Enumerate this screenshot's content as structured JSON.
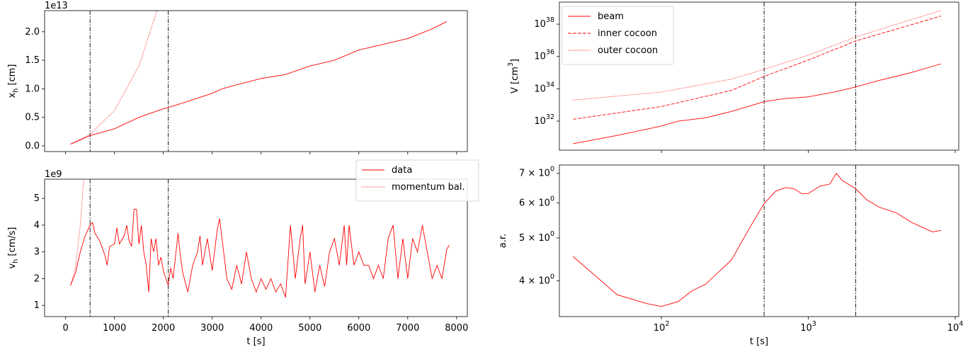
{
  "chart_data": [
    {
      "type": "line",
      "xscale": "linear",
      "yscale": "linear",
      "ylabel": "x_h [cm]",
      "offset_text": "1e13",
      "xlim": [
        -430,
        8220
      ],
      "ylim": [
        -0.1,
        2.37
      ],
      "xticks": [
        0,
        1000,
        2000,
        3000,
        4000,
        5000,
        6000,
        7000,
        8000
      ],
      "xtick_labels": false,
      "yticks": [
        {
          "value": 0,
          "label": "0.0"
        },
        {
          "value": 0.5,
          "label": "0.5"
        },
        {
          "value": 1,
          "label": "1.0"
        },
        {
          "value": 1.5,
          "label": "1.5"
        },
        {
          "value": 2,
          "label": "2.0"
        }
      ],
      "vlines": [
        500,
        2100
      ],
      "series": [
        {
          "name": "data",
          "color": "#ff0000",
          "style": "solid",
          "x": [
            100,
            500,
            1000,
            1500,
            2000,
            2100,
            2500,
            3000,
            3200,
            3500,
            4000,
            4500,
            5000,
            5500,
            6000,
            6500,
            7000,
            7500,
            7800
          ],
          "values": [
            0.03,
            0.18,
            0.3,
            0.5,
            0.65,
            0.67,
            0.78,
            0.92,
            1.0,
            1.07,
            1.18,
            1.25,
            1.4,
            1.5,
            1.68,
            1.78,
            1.88,
            2.05,
            2.18
          ]
        },
        {
          "name": "momentum bal.",
          "color": "#ff0000",
          "style": "dotted",
          "x": [
            100,
            500,
            1000,
            1500,
            1870
          ],
          "values": [
            0.03,
            0.2,
            0.62,
            1.4,
            2.37
          ]
        }
      ]
    },
    {
      "type": "line",
      "xscale": "linear",
      "yscale": "linear",
      "ylabel": "v_h [cm/s]",
      "xlabel": "t [s]",
      "offset_text": "1e9",
      "legend": "upper right",
      "xlim": [
        -430,
        8220
      ],
      "ylim": [
        0.58,
        5.72
      ],
      "xticks": [
        0,
        1000,
        2000,
        3000,
        4000,
        5000,
        6000,
        7000,
        8000
      ],
      "yticks": [
        1,
        2,
        3,
        4,
        5
      ],
      "vlines": [
        500,
        2100
      ],
      "series": [
        {
          "name": "data",
          "color": "#ff0000",
          "style": "solid",
          "x": [
            100,
            200,
            300,
            400,
            500,
            550,
            600,
            700,
            800,
            850,
            900,
            1000,
            1050,
            1100,
            1200,
            1250,
            1300,
            1350,
            1400,
            1450,
            1500,
            1550,
            1600,
            1650,
            1700,
            1750,
            1800,
            1850,
            1900,
            1950,
            2000,
            2050,
            2100,
            2150,
            2200,
            2300,
            2350,
            2400,
            2500,
            2600,
            2700,
            2750,
            2800,
            2900,
            3000,
            3100,
            3150,
            3200,
            3300,
            3400,
            3500,
            3600,
            3700,
            3800,
            3900,
            4000,
            4100,
            4200,
            4300,
            4400,
            4500,
            4600,
            4700,
            4800,
            4850,
            4900,
            5000,
            5100,
            5200,
            5300,
            5400,
            5500,
            5600,
            5700,
            5750,
            5800,
            5900,
            6000,
            6100,
            6200,
            6300,
            6400,
            6500,
            6600,
            6700,
            6750,
            6800,
            6900,
            7000,
            7100,
            7200,
            7300,
            7400,
            7500,
            7600,
            7700,
            7800,
            7850
          ],
          "values": [
            1.75,
            2.2,
            3.0,
            3.6,
            4.0,
            4.1,
            3.7,
            3.4,
            2.9,
            2.5,
            3.2,
            3.3,
            3.9,
            3.3,
            3.6,
            4.0,
            3.4,
            3.2,
            4.6,
            4.6,
            3.3,
            4.0,
            3.0,
            2.5,
            1.5,
            3.5,
            3.0,
            3.5,
            2.5,
            2.8,
            2.3,
            2.0,
            1.75,
            2.4,
            2.0,
            3.7,
            2.8,
            2.2,
            1.5,
            2.5,
            3.0,
            3.6,
            2.5,
            3.5,
            2.3,
            3.8,
            4.25,
            3.5,
            2.0,
            1.6,
            2.5,
            1.8,
            3.0,
            2.0,
            1.5,
            2.0,
            1.6,
            2.0,
            1.5,
            1.8,
            1.3,
            4.0,
            2.0,
            3.5,
            4.0,
            1.8,
            3.0,
            1.5,
            2.5,
            1.7,
            3.0,
            3.5,
            2.5,
            4.0,
            2.5,
            4.0,
            2.5,
            3.0,
            2.5,
            2.5,
            2.0,
            2.5,
            2.0,
            3.5,
            4.0,
            3.0,
            2.0,
            3.5,
            2.0,
            3.5,
            3.0,
            4.0,
            3.0,
            2.0,
            2.5,
            2.0,
            3.1,
            3.25
          ]
        },
        {
          "name": "momentum bal.",
          "color": "#ff0000",
          "style": "dotted",
          "x": [
            100,
            200,
            300,
            370
          ],
          "values": [
            1.75,
            2.4,
            4.0,
            5.72
          ]
        }
      ]
    },
    {
      "type": "line",
      "xscale": "log",
      "yscale": "log",
      "ylabel": "V [cm^3]",
      "legend": "upper left",
      "xlim": [
        20.2,
        10570
      ],
      "ylim": [
        1.6e+30,
        2.3e+39
      ],
      "xticks": [
        100,
        1000,
        10000
      ],
      "xtick_labels": false,
      "yticks": [
        {
          "value": 1e+32,
          "label": "10^32"
        },
        {
          "value": 1e+34,
          "label": "10^34"
        },
        {
          "value": 1e+36,
          "label": "10^36"
        },
        {
          "value": 1e+38,
          "label": "10^38"
        }
      ],
      "vlines": [
        500,
        2100
      ],
      "series": [
        {
          "name": "beam",
          "color": "#ff0000",
          "style": "solid",
          "x": [
            25,
            50,
            100,
            130,
            200,
            300,
            500,
            700,
            1000,
            1500,
            2100,
            3000,
            5000,
            8000
          ],
          "values": [
            4e+30,
            1.3e+31,
            5e+31,
            1e+32,
            1.6e+32,
            4e+32,
            1.6e+33,
            2.5e+33,
            3.2e+33,
            6.3e+33,
            1.3e+34,
            3.2e+34,
            1e+35,
            3.5e+35
          ]
        },
        {
          "name": "inner cocoon",
          "color": "#ff0000",
          "style": "dashed",
          "x": [
            25,
            100,
            300,
            500,
            1000,
            2100,
            4000,
            8000
          ],
          "values": [
            1.3e+32,
            8e+32,
            8e+33,
            5.8e+34,
            6e+35,
            9e+36,
            5e+37,
            3.2e+38
          ]
        },
        {
          "name": "outer cocoon",
          "color": "#ff0000",
          "style": "dotted",
          "x": [
            25,
            100,
            300,
            500,
            1000,
            2100,
            4000,
            8000
          ],
          "values": [
            2e+33,
            6.3e+33,
            4e+34,
            1.6e+35,
            1.2e+36,
            1.6e+37,
            1e+38,
            7e+38
          ]
        }
      ]
    },
    {
      "type": "line",
      "xscale": "log",
      "yscale": "log",
      "ylabel": "a.r.",
      "xlabel": "t [s]",
      "xlim": [
        20.2,
        10570
      ],
      "ylim": [
        3.32,
        7.31
      ],
      "xticks": [
        {
          "value": 100,
          "label": "10^2"
        },
        {
          "value": 1000,
          "label": "10^3"
        },
        {
          "value": 10000,
          "label": "10^4"
        }
      ],
      "yticks": [
        {
          "value": 4,
          "label": "4 × 10^0"
        },
        {
          "value": 5,
          "label": "5 × 10^0"
        },
        {
          "value": 6,
          "label": "6 × 10^0"
        },
        {
          "value": 7,
          "label": "7 × 10^0"
        }
      ],
      "vlines": [
        500,
        2100
      ],
      "series": [
        {
          "name": "a.r.",
          "color": "#ff0000",
          "style": "solid",
          "x": [
            25,
            50,
            80,
            100,
            130,
            160,
            200,
            300,
            400,
            500,
            600,
            700,
            800,
            900,
            1000,
            1200,
            1400,
            1550,
            1700,
            2100,
            2500,
            3000,
            4000,
            5000,
            6000,
            7000,
            8000
          ],
          "values": [
            4.54,
            3.72,
            3.55,
            3.5,
            3.59,
            3.79,
            3.93,
            4.46,
            5.28,
            5.98,
            6.38,
            6.5,
            6.46,
            6.3,
            6.3,
            6.55,
            6.62,
            7.0,
            6.75,
            6.46,
            6.1,
            5.88,
            5.69,
            5.43,
            5.28,
            5.16,
            5.2
          ]
        }
      ]
    }
  ]
}
